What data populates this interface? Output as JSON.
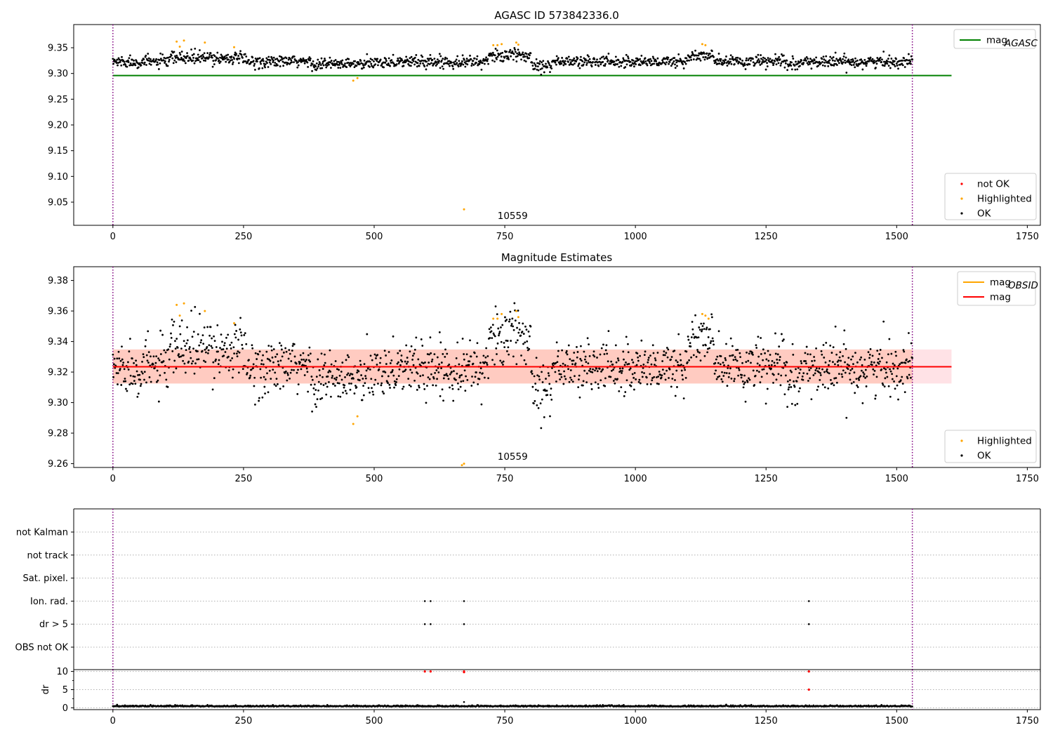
{
  "chart_data": [
    {
      "type": "scatter",
      "title": "AGASC ID 573842336.0",
      "xlim": [
        -75,
        1775
      ],
      "ylim": [
        9.005,
        9.395
      ],
      "xticks": [
        0,
        250,
        500,
        750,
        1000,
        1250,
        1500,
        1750
      ],
      "yticks": [
        9.05,
        9.1,
        9.15,
        9.2,
        9.25,
        9.3,
        9.35
      ],
      "vlines": [
        0,
        1530
      ],
      "hlines": [
        {
          "label": "mag",
          "sub": "AGASC",
          "y": 9.296,
          "x0": 0,
          "x1": 1605,
          "color": "#008000"
        }
      ],
      "annotations": [
        {
          "text": "10559",
          "x": 765,
          "y": 9.017
        }
      ],
      "legend_upper": {
        "position": "upper-right",
        "entries": [
          {
            "label": "mag",
            "sub": "AGASC",
            "color": "#008000"
          }
        ]
      },
      "legend_lower": {
        "position": "lower-right",
        "entries": [
          {
            "label": "not OK",
            "color": "#ff0000"
          },
          {
            "label": "Highlighted",
            "color": "#ffa500"
          },
          {
            "label": "OK",
            "color": "#000000"
          }
        ]
      },
      "series": {
        "ok": {
          "x_start": 0,
          "x_end": 1530,
          "count": 1530,
          "base": 9.323,
          "spread": 0.009
        },
        "highlighted": {
          "x": [
            122,
            128,
            136,
            176,
            232,
            460,
            468,
            672,
            728,
            736,
            744,
            772,
            776,
            1128,
            1134
          ],
          "y": [
            9.362,
            9.352,
            9.364,
            9.36,
            9.351,
            9.286,
            9.291,
            9.036,
            9.355,
            9.355,
            9.357,
            9.36,
            9.356,
            9.357,
            9.355
          ]
        },
        "not_ok": {
          "x": [],
          "y": []
        }
      }
    },
    {
      "type": "scatter",
      "title": "Magnitude Estimates",
      "xlim": [
        -75,
        1775
      ],
      "ylim": [
        9.2575,
        9.389
      ],
      "xticks": [
        0,
        250,
        500,
        750,
        1000,
        1250,
        1500,
        1750
      ],
      "yticks": [
        9.26,
        9.28,
        9.3,
        9.32,
        9.34,
        9.36,
        9.38
      ],
      "vlines": [
        0,
        1530
      ],
      "band": {
        "y0": 9.3125,
        "y1": 9.3348,
        "x0": 0,
        "x1": 1605
      },
      "mean_line": {
        "y": 9.3235,
        "x0": 0,
        "x1": 1605
      },
      "annotations": [
        {
          "text": "10559",
          "x": 765,
          "y": 9.2625
        }
      ],
      "legend_upper": {
        "position": "upper-right",
        "entries": [
          {
            "label": "mag",
            "sub": "OBSID",
            "color": "#ffa500"
          },
          {
            "label": "mag",
            "color": "#ff0000"
          }
        ]
      },
      "legend_lower": {
        "position": "lower-right",
        "entries": [
          {
            "label": "Highlighted",
            "color": "#ffa500"
          },
          {
            "label": "OK",
            "color": "#000000"
          }
        ]
      },
      "series": {
        "ok": {
          "x_start": 0,
          "x_end": 1530,
          "count": 1530,
          "base": 9.323,
          "spread": 0.009
        },
        "highlighted": {
          "x": [
            122,
            128,
            136,
            176,
            232,
            460,
            468,
            668,
            672,
            728,
            736,
            744,
            772,
            776,
            1128,
            1134,
            1140
          ],
          "y": [
            9.364,
            9.357,
            9.365,
            9.36,
            9.352,
            9.286,
            9.291,
            9.259,
            9.26,
            9.355,
            9.355,
            9.358,
            9.36,
            9.356,
            9.358,
            9.357,
            9.355
          ]
        }
      }
    },
    {
      "type": "scatter",
      "title": "",
      "xlim": [
        -75,
        1775
      ],
      "categories": [
        "not Kalman",
        "not track",
        "Sat. pixel.",
        "Ion. rad.",
        "dr > 5",
        "OBS not OK"
      ],
      "vlines": [
        0,
        1530
      ],
      "flags": {
        "Ion. rad.": [
          597,
          608,
          672,
          1332
        ],
        "dr > 5": [
          597,
          608,
          672,
          1332
        ]
      }
    },
    {
      "type": "scatter",
      "title": "",
      "ylabel": "dr",
      "xlim": [
        -75,
        1775
      ],
      "ylim": [
        -0.5,
        10.5
      ],
      "xticks": [
        0,
        250,
        500,
        750,
        1000,
        1250,
        1500,
        1750
      ],
      "yticks": [
        0,
        5,
        10
      ],
      "vlines": [
        0,
        1530
      ],
      "series": {
        "ok": {
          "x_start": 0,
          "x_end": 1530,
          "count": 1530,
          "base": 0.35,
          "spread": 0.15
        },
        "outlier": {
          "x": [
            672
          ],
          "y": [
            1.6
          ]
        },
        "not_ok": {
          "x": [
            597,
            608,
            672,
            672,
            1332,
            1332
          ],
          "y": [
            10,
            10,
            10,
            9.8,
            10,
            5
          ]
        }
      }
    }
  ]
}
